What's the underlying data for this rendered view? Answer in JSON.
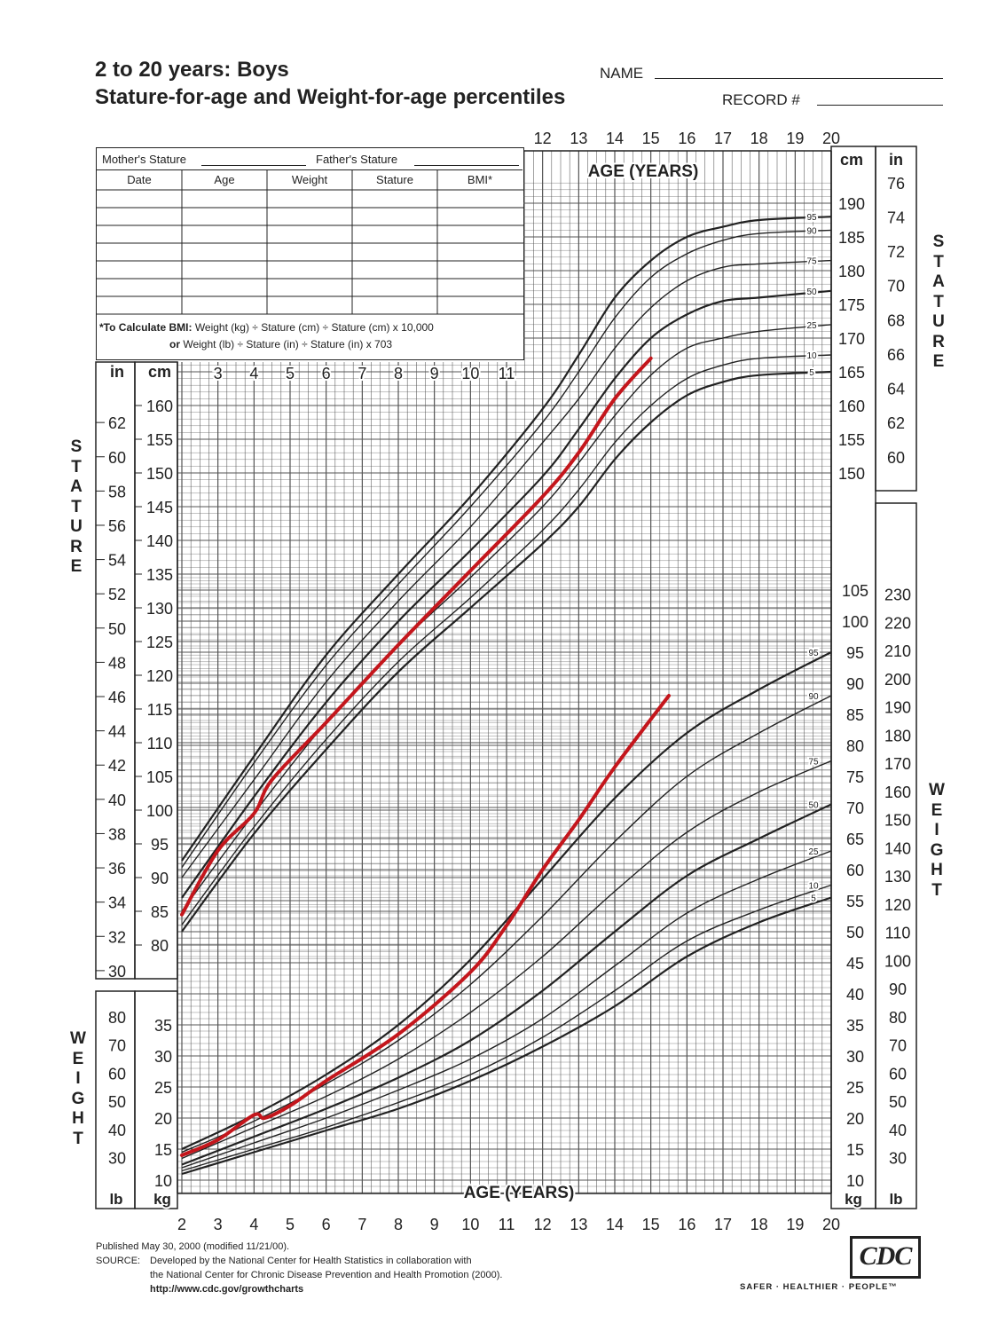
{
  "header": {
    "title_line1": "2 to 20 years: Boys",
    "title_line2": "Stature-for-age and Weight-for-age percentiles",
    "name_label": "NAME",
    "record_label": "RECORD #"
  },
  "record_table": {
    "mothers_stature": "Mother's Stature",
    "fathers_stature": "Father's Stature",
    "columns": [
      "Date",
      "Age",
      "Weight",
      "Stature",
      "BMI*"
    ],
    "bmi_note_bold": "*To Calculate BMI:",
    "bmi_note_line1": "Weight (kg) ÷ Stature (cm) ÷ Stature (cm) x 10,000",
    "bmi_note_or": "or",
    "bmi_note_line2": "Weight (lb) ÷ Stature (in) ÷ Stature (in) x 703"
  },
  "side_labels": {
    "stature": "S\nT\nA\nT\nU\nR\nE",
    "weight": "W\nE\nI\nG\nH\nT"
  },
  "footer": {
    "published": "Published May 30, 2000 (modified 11/21/00).",
    "source_label": "SOURCE:",
    "source_line1": "Developed by the National Center for Health Statistics in collaboration with",
    "source_line2": "the National Center for Chronic Disease Prevention and Health Promotion (2000).",
    "url": "http://www.cdc.gov/growthcharts",
    "logo_text": "CDC",
    "tagline": "SAFER · HEALTHIER · PEOPLE™"
  },
  "chart_data": [
    {
      "type": "line",
      "title": "Stature-for-age",
      "xlabel": "AGE (YEARS)",
      "ylabel": "STATURE",
      "y_units": [
        "cm",
        "in"
      ],
      "xlim": [
        2,
        20
      ],
      "ylim": [
        75,
        195
      ],
      "x_ticks_upper": [
        12,
        13,
        14,
        15,
        16,
        17,
        18,
        19,
        20
      ],
      "x_ticks_inner": [
        3,
        4,
        5,
        6,
        7,
        8,
        9,
        10,
        11
      ],
      "left_in_ticks": [
        30,
        32,
        34,
        36,
        38,
        40,
        42,
        44,
        46,
        48,
        50,
        52,
        54,
        56,
        58,
        60,
        62
      ],
      "left_cm_ticks": [
        80,
        85,
        90,
        95,
        100,
        105,
        110,
        115,
        120,
        125,
        130,
        135,
        140,
        145,
        150,
        155,
        160
      ],
      "right_cm_ticks": [
        150,
        155,
        160,
        165,
        170,
        175,
        180,
        185,
        190
      ],
      "right_in_ticks": [
        60,
        62,
        64,
        66,
        68,
        70,
        72,
        74,
        76
      ],
      "percentiles": [
        {
          "name": "95",
          "x": [
            2,
            4,
            6,
            8,
            10,
            12,
            13,
            14,
            15,
            16,
            17,
            18,
            20
          ],
          "y": [
            92.5,
            108,
            123,
            135,
            146.5,
            159.5,
            167.5,
            176,
            181.5,
            185,
            186.5,
            187.5,
            188
          ]
        },
        {
          "name": "90",
          "x": [
            2,
            4,
            6,
            8,
            10,
            12,
            13,
            14,
            15,
            16,
            17,
            18,
            20
          ],
          "y": [
            91.5,
            107,
            121.5,
            133.5,
            145,
            157.5,
            165,
            173,
            179,
            182.5,
            184.5,
            185.5,
            186
          ]
        },
        {
          "name": "75",
          "x": [
            2,
            4,
            6,
            8,
            10,
            12,
            13,
            14,
            15,
            16,
            17,
            18,
            20
          ],
          "y": [
            90,
            104.5,
            119,
            131,
            142,
            154.5,
            161,
            168.5,
            174.5,
            178.5,
            180.5,
            181,
            181.5
          ]
        },
        {
          "name": "50",
          "x": [
            2,
            4,
            6,
            8,
            10,
            12,
            13,
            14,
            15,
            16,
            17,
            18,
            20
          ],
          "y": [
            87,
            102,
            116,
            128,
            138.5,
            149.5,
            156.5,
            164,
            170,
            173.5,
            175.5,
            176,
            177
          ]
        },
        {
          "name": "25",
          "x": [
            2,
            4,
            6,
            8,
            10,
            12,
            13,
            14,
            15,
            16,
            17,
            18,
            20
          ],
          "y": [
            85,
            99.5,
            113,
            124.5,
            134.5,
            145,
            151.5,
            158.5,
            164.5,
            168.5,
            170,
            171,
            172
          ]
        },
        {
          "name": "10",
          "x": [
            2,
            4,
            6,
            8,
            10,
            12,
            13,
            14,
            15,
            16,
            17,
            18,
            20
          ],
          "y": [
            83,
            97.5,
            110.5,
            122,
            131.5,
            141.5,
            147.5,
            154.5,
            160,
            164,
            166,
            167,
            167.5
          ]
        },
        {
          "name": "5",
          "x": [
            2,
            4,
            6,
            8,
            10,
            12,
            13,
            14,
            15,
            16,
            17,
            18,
            20
          ],
          "y": [
            82,
            96.5,
            109,
            120.5,
            130,
            139.5,
            145,
            152,
            157.5,
            161.5,
            163.5,
            164.5,
            165
          ]
        }
      ],
      "patient": {
        "x": [
          2,
          3,
          4,
          4.5,
          6,
          8,
          10,
          12,
          13,
          14,
          15
        ],
        "y": [
          84.5,
          94,
          99.5,
          104.5,
          113,
          124.5,
          135.5,
          146.5,
          153,
          161,
          167
        ]
      }
    },
    {
      "type": "line",
      "title": "Weight-for-age",
      "xlabel": "AGE (YEARS)",
      "ylabel": "WEIGHT",
      "y_units": [
        "kg",
        "lb"
      ],
      "xlim": [
        2,
        20
      ],
      "ylim": [
        10,
        105
      ],
      "x_ticks": [
        2,
        3,
        4,
        5,
        6,
        7,
        8,
        9,
        10,
        11,
        12,
        13,
        14,
        15,
        16,
        17,
        18,
        19,
        20
      ],
      "left_lb_ticks": [
        30,
        40,
        50,
        60,
        70,
        80
      ],
      "left_kg_ticks": [
        10,
        15,
        20,
        25,
        30,
        35
      ],
      "right_kg_ticks": [
        10,
        15,
        20,
        25,
        30,
        35,
        40,
        45,
        50,
        55,
        60,
        65,
        70,
        75,
        80,
        85,
        90,
        95,
        100,
        105
      ],
      "right_lb_ticks": [
        30,
        40,
        50,
        60,
        70,
        80,
        90,
        100,
        110,
        120,
        130,
        140,
        150,
        160,
        170,
        180,
        190,
        200,
        210,
        220,
        230
      ],
      "percentiles": [
        {
          "name": "95",
          "x": [
            2,
            4,
            6,
            8,
            10,
            12,
            14,
            16,
            18,
            20
          ],
          "y": [
            15,
            20.5,
            27,
            35,
            45.5,
            58.5,
            71.5,
            82,
            89,
            95
          ]
        },
        {
          "name": "90",
          "x": [
            2,
            4,
            6,
            8,
            10,
            12,
            14,
            16,
            18,
            20
          ],
          "y": [
            14.5,
            19.5,
            25.5,
            32.5,
            41.5,
            52.5,
            64.5,
            75,
            82,
            88
          ]
        },
        {
          "name": "75",
          "x": [
            2,
            4,
            6,
            8,
            10,
            12,
            14,
            16,
            18,
            20
          ],
          "y": [
            13.5,
            18.5,
            23.5,
            29.5,
            37,
            46,
            56.5,
            66,
            72.5,
            77.5
          ]
        },
        {
          "name": "50",
          "x": [
            2,
            4,
            6,
            8,
            10,
            12,
            14,
            16,
            18,
            20
          ],
          "y": [
            12.5,
            17,
            21.5,
            26.5,
            32.5,
            40.5,
            50,
            59,
            65,
            70.5
          ]
        },
        {
          "name": "25",
          "x": [
            2,
            4,
            6,
            8,
            10,
            12,
            14,
            16,
            18,
            20
          ],
          "y": [
            12,
            16,
            20,
            24.5,
            29.5,
            36,
            44.5,
            53,
            58.5,
            63
          ]
        },
        {
          "name": "10",
          "x": [
            2,
            4,
            6,
            8,
            10,
            12,
            14,
            16,
            18,
            20
          ],
          "y": [
            11.5,
            15,
            18.5,
            22.5,
            27,
            33,
            40.5,
            48.5,
            53.5,
            57.5
          ]
        },
        {
          "name": "5",
          "x": [
            2,
            4,
            6,
            8,
            10,
            12,
            14,
            16,
            18,
            20
          ],
          "y": [
            11,
            14.5,
            18,
            21.5,
            26,
            31.5,
            38,
            46,
            51.5,
            55.5
          ]
        }
      ],
      "patient": {
        "x": [
          2,
          3,
          4,
          4.3,
          5,
          6,
          8,
          10,
          11,
          12,
          13,
          14,
          15.5
        ],
        "y": [
          14,
          16.5,
          20.5,
          20,
          22,
          26,
          33.5,
          43.5,
          51,
          60,
          68,
          76.5,
          88
        ]
      }
    }
  ]
}
